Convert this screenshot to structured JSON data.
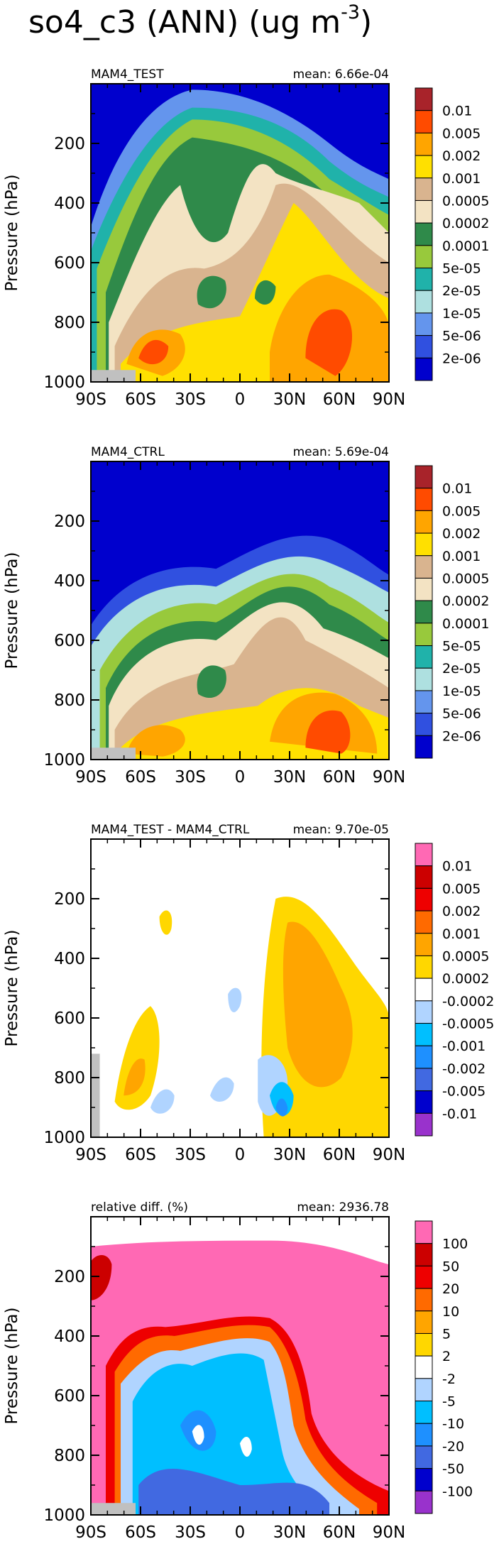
{
  "figure": {
    "title": "so4_c3 (ANN) (ug m",
    "title_sup": "-3",
    "title_close": ")"
  },
  "chart_data": [
    {
      "type": "heatmap",
      "title": "MAM4_TEST",
      "mean_label": "mean: 6.66e-04",
      "ylabel": "Pressure (hPa)",
      "x_ticks": [
        "90S",
        "60S",
        "30S",
        "0",
        "30N",
        "60N",
        "90N"
      ],
      "y_ticks": [
        "200",
        "400",
        "600",
        "800",
        "1000"
      ],
      "ylim": [
        1000,
        0
      ],
      "colorbar": {
        "labels": [
          "0.01",
          "0.005",
          "0.002",
          "0.001",
          "0.0005",
          "0.0002",
          "0.0001",
          "5e-05",
          "2e-05",
          "1e-05",
          "5e-06",
          "2e-06"
        ],
        "colors": [
          "#a8232a",
          "#ff4b00",
          "#ffa500",
          "#ffe000",
          "#d9b48f",
          "#f3e3c3",
          "#2f8a4a",
          "#98c93c",
          "#20b2aa",
          "#aee0e0",
          "#6495ed",
          "#3050e0",
          "#0000cd"
        ]
      }
    },
    {
      "type": "heatmap",
      "title": "MAM4_CTRL",
      "mean_label": "mean: 5.69e-04",
      "ylabel": "Pressure (hPa)",
      "x_ticks": [
        "90S",
        "60S",
        "30S",
        "0",
        "30N",
        "60N",
        "90N"
      ],
      "y_ticks": [
        "200",
        "400",
        "600",
        "800",
        "1000"
      ],
      "ylim": [
        1000,
        0
      ],
      "colorbar": {
        "labels": [
          "0.01",
          "0.005",
          "0.002",
          "0.001",
          "0.0005",
          "0.0002",
          "0.0001",
          "5e-05",
          "2e-05",
          "1e-05",
          "5e-06",
          "2e-06"
        ],
        "colors": [
          "#a8232a",
          "#ff4b00",
          "#ffa500",
          "#ffe000",
          "#d9b48f",
          "#f3e3c3",
          "#2f8a4a",
          "#98c93c",
          "#20b2aa",
          "#aee0e0",
          "#6495ed",
          "#3050e0",
          "#0000cd"
        ]
      }
    },
    {
      "type": "heatmap",
      "title": "MAM4_TEST - MAM4_CTRL",
      "mean_label": "mean: 9.70e-05",
      "ylabel": "Pressure (hPa)",
      "x_ticks": [
        "90S",
        "60S",
        "30S",
        "0",
        "30N",
        "60N",
        "90N"
      ],
      "y_ticks": [
        "200",
        "400",
        "600",
        "800",
        "1000"
      ],
      "ylim": [
        1000,
        0
      ],
      "colorbar": {
        "labels": [
          "0.01",
          "0.005",
          "0.002",
          "0.001",
          "0.0005",
          "0.0002",
          "-0.0002",
          "-0.0005",
          "-0.001",
          "-0.002",
          "-0.005",
          "-0.01"
        ],
        "colors": [
          "#ff69b4",
          "#cc0000",
          "#ee0000",
          "#ff6a00",
          "#ffa500",
          "#ffd700",
          "#ffffff",
          "#b0d4ff",
          "#00bfff",
          "#1e90ff",
          "#4169e1",
          "#0000cd",
          "#9932cc"
        ]
      }
    },
    {
      "type": "heatmap",
      "title": "relative diff. (%)",
      "mean_label": "mean: 2936.78",
      "ylabel": "Pressure (hPa)",
      "x_ticks": [
        "90S",
        "60S",
        "30S",
        "0",
        "30N",
        "60N",
        "90N"
      ],
      "y_ticks": [
        "200",
        "400",
        "600",
        "800",
        "1000"
      ],
      "ylim": [
        1000,
        0
      ],
      "colorbar": {
        "labels": [
          "100",
          "50",
          "20",
          "10",
          "5",
          "2",
          "-2",
          "-5",
          "-10",
          "-20",
          "-50",
          "-100"
        ],
        "colors": [
          "#ff69b4",
          "#cc0000",
          "#ee0000",
          "#ff6a00",
          "#ffa500",
          "#ffd700",
          "#ffffff",
          "#b0d4ff",
          "#00bfff",
          "#1e90ff",
          "#4169e1",
          "#0000cd",
          "#9932cc"
        ]
      }
    }
  ]
}
